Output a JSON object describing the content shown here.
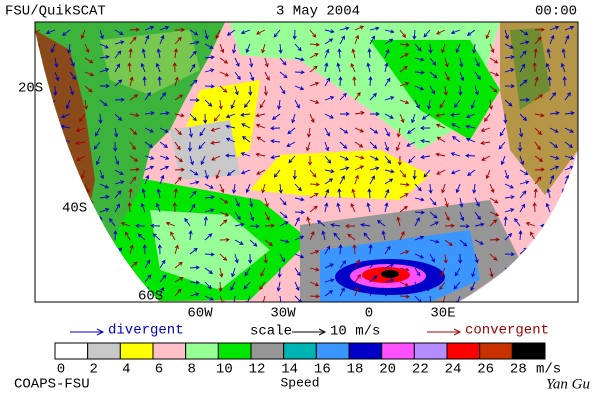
{
  "header": {
    "title": "FSU/QuikSCAT",
    "date": "3 May 2004",
    "time": "00:00"
  },
  "map": {
    "lat_labels": [
      "20S",
      "40S",
      "60S"
    ],
    "lon_labels": [
      "60W",
      "30W",
      "0",
      "30E"
    ]
  },
  "legend": {
    "divergent": "divergent",
    "scale": "scale",
    "scale_value": "10 m/s",
    "convergent": "convergent"
  },
  "colorbar": {
    "labels": [
      0,
      2,
      4,
      6,
      8,
      10,
      12,
      14,
      16,
      18,
      20,
      22,
      24,
      26,
      28
    ],
    "unit": "m/s",
    "title": "Speed",
    "colors": [
      "#ffffff",
      "#c8c8c8",
      "#ffff00",
      "#ffc0c8",
      "#96ff96",
      "#00e600",
      "#969696",
      "#00b4b4",
      "#3c96ff",
      "#0000c8",
      "#ff50ff",
      "#b48cff",
      "#ff0000",
      "#c83200",
      "#000000"
    ]
  },
  "footer": {
    "credit": "COAPS-FSU",
    "author": "Yan Gu"
  }
}
